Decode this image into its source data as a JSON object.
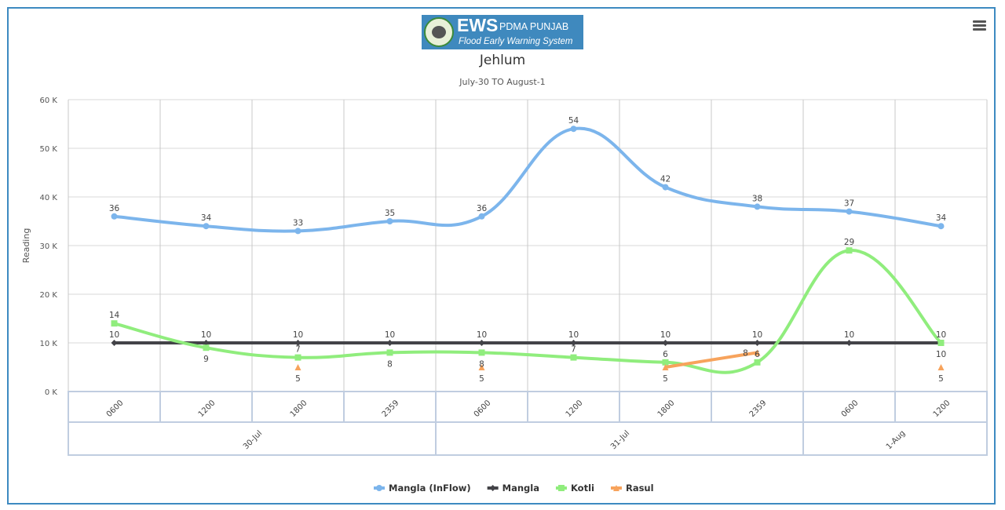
{
  "logo": {
    "big": "EWS",
    "small": "PDMA PUNJAB",
    "sub": "Flood Early Warning System"
  },
  "menu_icon": "hamburger-menu-icon",
  "chart_data": {
    "type": "line",
    "title": "Jehlum",
    "subtitle": "July-30 TO August-1",
    "ylabel": "Reading",
    "xlabel": "",
    "ylim": [
      0,
      60
    ],
    "yticks": [
      0,
      10,
      20,
      30,
      40,
      50,
      60
    ],
    "ytick_labels": [
      "0 K",
      "10 K",
      "20 K",
      "30 K",
      "40 K",
      "50 K",
      "60 K"
    ],
    "grid": true,
    "categories": [
      "0600",
      "1200",
      "1800",
      "2359",
      "0600",
      "1200",
      "1800",
      "2359",
      "0600",
      "1200"
    ],
    "groups": [
      {
        "label": "30-Jul",
        "count": 4
      },
      {
        "label": "31-Jul",
        "count": 4
      },
      {
        "label": "1-Aug",
        "count": 2
      }
    ],
    "legend_position": "bottom-center",
    "series": [
      {
        "name": "Mangla (InFlow)",
        "color": "#7cb5ec",
        "marker": "circle",
        "values": [
          36,
          34,
          33,
          35,
          36,
          54,
          42,
          38,
          37,
          34
        ]
      },
      {
        "name": "Mangla",
        "color": "#434348",
        "marker": "diamond",
        "values": [
          10,
          10,
          10,
          10,
          10,
          10,
          10,
          10,
          10,
          10
        ]
      },
      {
        "name": "Kotli",
        "color": "#90ed7d",
        "marker": "square",
        "values": [
          14,
          9,
          7,
          8,
          8,
          7,
          6,
          6,
          29,
          10
        ]
      },
      {
        "name": "Rasul",
        "color": "#f7a35c",
        "marker": "triangle",
        "values": [
          null,
          null,
          5,
          null,
          5,
          null,
          5,
          8,
          null,
          5
        ]
      }
    ]
  }
}
